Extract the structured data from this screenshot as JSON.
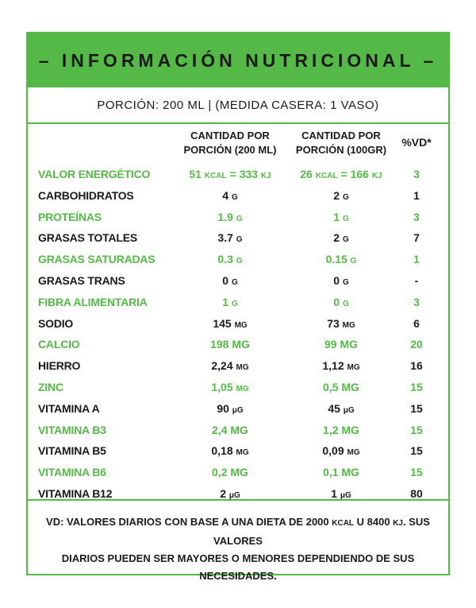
{
  "header": {
    "title": "– INFORMACIÓN NUTRICIONAL –"
  },
  "serving": {
    "text": "PORCIÓN: 200 ML | (MEDIDA CASERA: 1 VASO)"
  },
  "columns": {
    "per_serving": "CANTIDAD POR\nPORCIÓN (200 ML)",
    "per_100": "CANTIDAD POR\nPORCIÓN (100GR)",
    "dv": "%VD*"
  },
  "rows": [
    {
      "name": "VALOR ENERGÉTICO",
      "v1": "51",
      "v1u": "KCAL",
      "v1b": " = 333 ",
      "v1bu": "KJ",
      "v2": "26",
      "v2u": "KCAL",
      "v2b": " = 166 ",
      "v2bu": "KJ",
      "dv": "3",
      "color": "green"
    },
    {
      "name": "CARBOHIDRATOS",
      "v1": "4",
      "v1u": "G",
      "v2": "2",
      "v2u": "G",
      "dv": "1",
      "color": "black"
    },
    {
      "name": "PROTEÍNAS",
      "v1": "1.9",
      "v1u": "G",
      "v2": "1",
      "v2u": "G",
      "dv": "3",
      "color": "green"
    },
    {
      "name": "GRASAS TOTALES",
      "v1": "3.7",
      "v1u": "G",
      "v2": "2",
      "v2u": "G",
      "dv": "7",
      "color": "black"
    },
    {
      "name": "GRASAS SATURADAS",
      "v1": "0.3",
      "v1u": "G",
      "v2": "0.15",
      "v2u": "G",
      "dv": "1",
      "color": "green"
    },
    {
      "name": "GRASAS TRANS",
      "v1": "0",
      "v1u": "G",
      "v2": "0",
      "v2u": "G",
      "dv": "-",
      "color": "black"
    },
    {
      "name": "FIBRA ALIMENTARIA",
      "v1": "1",
      "v1u": "G",
      "v2": "0",
      "v2u": "G",
      "dv": "3",
      "color": "green"
    },
    {
      "name": "SODIO",
      "v1": "145",
      "v1u": "MG",
      "v2": "73",
      "v2u": "MG",
      "dv": "6",
      "color": "black"
    },
    {
      "name": "CALCIO",
      "v1": "198 MG",
      "v1u": "",
      "v2": "99 MG",
      "v2u": "",
      "dv": "20",
      "color": "green"
    },
    {
      "name": "HIERRO",
      "v1": "2,24",
      "v1u": "MG",
      "v2": "1,12",
      "v2u": "MG",
      "dv": "16",
      "color": "black"
    },
    {
      "name": "ZINC",
      "v1": "1,05",
      "v1u": "MG",
      "v2": "0,5 MG",
      "v2u": "",
      "dv": "15",
      "color": "green"
    },
    {
      "name": "VITAMINA A",
      "v1": "90",
      "v1u": "μG",
      "v2": "45",
      "v2u": "μG",
      "dv": "15",
      "color": "black"
    },
    {
      "name": "VITAMINA B3",
      "v1": "2,4 MG",
      "v1u": "",
      "v2": "1,2 MG",
      "v2u": "",
      "dv": "15",
      "color": "green"
    },
    {
      "name": "VITAMINA  B5",
      "v1": "0,18",
      "v1u": "MG",
      "v2": "0,09",
      "v2u": "MG",
      "dv": "15",
      "color": "black"
    },
    {
      "name": "VITAMINA B6",
      "v1": "0,2 MG",
      "v1u": "",
      "v2": "0,1 MG",
      "v2u": "",
      "dv": "15",
      "color": "green"
    },
    {
      "name": "VITAMINA B12",
      "v1": "2",
      "v1u": "μG",
      "v2": "1",
      "v2u": "μG",
      "dv": "80",
      "color": "black"
    }
  ],
  "footnote": {
    "line1_a": "VD: VALORES DIARIOS CON BASE A UNA DIETA DE 2000 ",
    "line1_kcal": "KCAL",
    "line1_b": " U 8400 ",
    "line1_kj": "KJ",
    "line1_c": ". SUS VALORES",
    "line2": "DIARIOS PUEDEN SER MAYORES O MENORES DEPENDIENDO DE SUS NECESIDADES."
  },
  "colors": {
    "accent": "#55b947",
    "text": "#1a1a1a"
  }
}
